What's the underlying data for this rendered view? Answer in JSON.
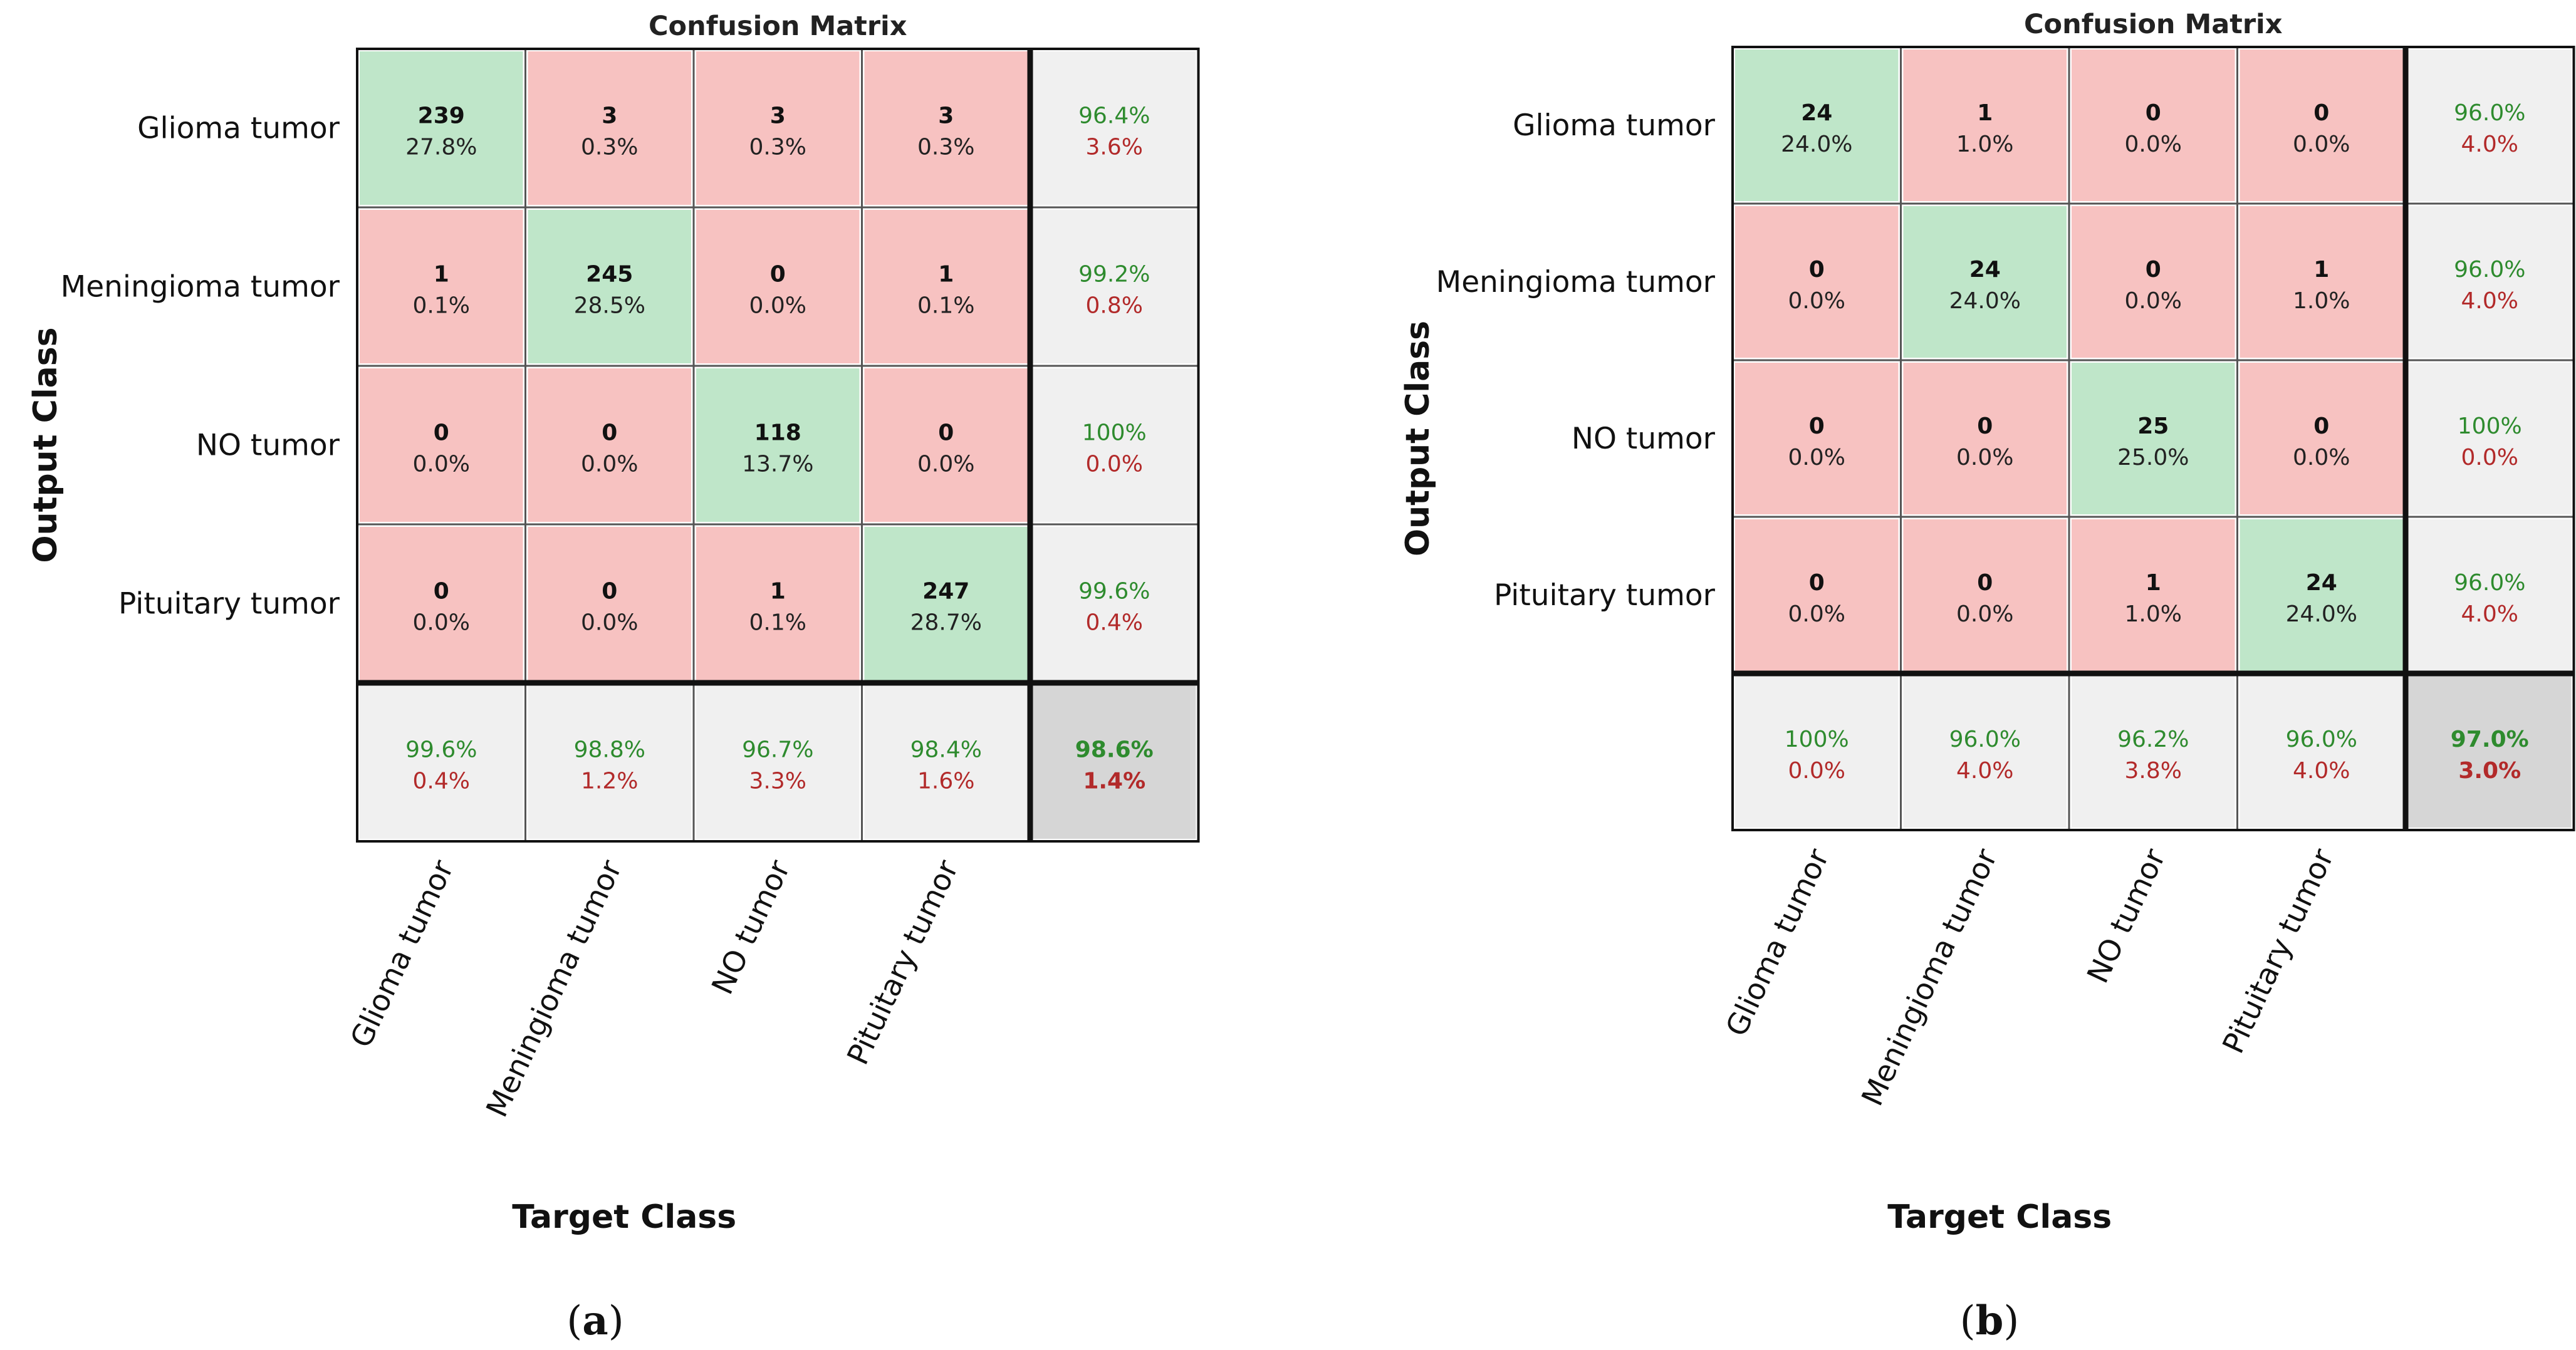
{
  "colors": {
    "correct_fill": "#bfe6c9",
    "error_fill": "#f7c2c1",
    "summary_fill": "#f0f0f0",
    "total_fill": "#d6d6d6",
    "good_text": "#2e8b2e",
    "bad_text": "#b22a2a",
    "grid": "#555555",
    "border": "#111111"
  },
  "chart_data": [
    {
      "type": "heatmap",
      "panel_label": "a",
      "title": "Confusion Matrix",
      "xlabel": "Target Class",
      "ylabel": "Output Class",
      "row_labels": [
        "Glioma tumor",
        "Meningioma tumor",
        "NO tumor",
        "Pituitary tumor"
      ],
      "col_labels": [
        "Glioma tumor",
        "Meningioma tumor",
        "NO tumor",
        "Pituitary tumor"
      ],
      "counts": [
        [
          239,
          3,
          3,
          3
        ],
        [
          1,
          245,
          0,
          1
        ],
        [
          0,
          0,
          118,
          0
        ],
        [
          0,
          0,
          1,
          247
        ]
      ],
      "percents": [
        [
          "27.8%",
          "0.3%",
          "0.3%",
          "0.3%"
        ],
        [
          "0.1%",
          "28.5%",
          "0.0%",
          "0.1%"
        ],
        [
          "0.0%",
          "0.0%",
          "13.7%",
          "0.0%"
        ],
        [
          "0.0%",
          "0.0%",
          "0.1%",
          "28.7%"
        ]
      ],
      "row_summary": [
        [
          "96.4%",
          "3.6%"
        ],
        [
          "99.2%",
          "0.8%"
        ],
        [
          "100%",
          "0.0%"
        ],
        [
          "99.6%",
          "0.4%"
        ]
      ],
      "col_summary": [
        [
          "99.6%",
          "0.4%"
        ],
        [
          "98.8%",
          "1.2%"
        ],
        [
          "96.7%",
          "3.3%"
        ],
        [
          "98.4%",
          "1.6%"
        ]
      ],
      "total": [
        "98.6%",
        "1.4%"
      ]
    },
    {
      "type": "heatmap",
      "panel_label": "b",
      "title": "Confusion Matrix",
      "xlabel": "Target Class",
      "ylabel": "Output Class",
      "row_labels": [
        "Glioma tumor",
        "Meningioma tumor",
        "NO tumor",
        "Pituitary tumor"
      ],
      "col_labels": [
        "Glioma tumor",
        "Meningioma tumor",
        "NO tumor",
        "Pituitary tumor"
      ],
      "counts": [
        [
          24,
          1,
          0,
          0
        ],
        [
          0,
          24,
          0,
          1
        ],
        [
          0,
          0,
          25,
          0
        ],
        [
          0,
          0,
          1,
          24
        ]
      ],
      "percents": [
        [
          "24.0%",
          "1.0%",
          "0.0%",
          "0.0%"
        ],
        [
          "0.0%",
          "24.0%",
          "0.0%",
          "1.0%"
        ],
        [
          "0.0%",
          "0.0%",
          "25.0%",
          "0.0%"
        ],
        [
          "0.0%",
          "0.0%",
          "1.0%",
          "24.0%"
        ]
      ],
      "row_summary": [
        [
          "96.0%",
          "4.0%"
        ],
        [
          "96.0%",
          "4.0%"
        ],
        [
          "100%",
          "0.0%"
        ],
        [
          "96.0%",
          "4.0%"
        ]
      ],
      "col_summary": [
        [
          "100%",
          "0.0%"
        ],
        [
          "96.0%",
          "4.0%"
        ],
        [
          "96.2%",
          "3.8%"
        ],
        [
          "96.0%",
          "4.0%"
        ]
      ],
      "total": [
        "97.0%",
        "3.0%"
      ]
    }
  ]
}
